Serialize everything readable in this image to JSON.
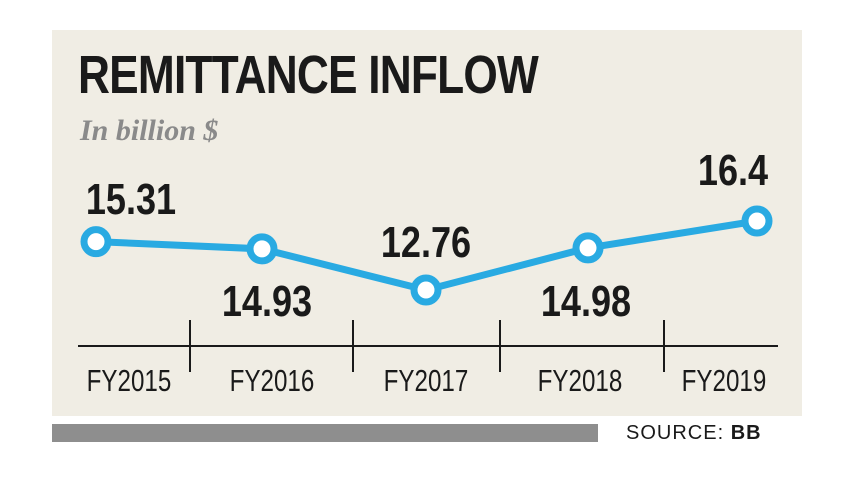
{
  "chart_data": {
    "type": "line",
    "title": "REMITTANCE INFLOW",
    "subtitle": "In billion $",
    "categories": [
      "FY2015",
      "FY2016",
      "FY2017",
      "FY2018",
      "FY2019"
    ],
    "values": [
      15.31,
      14.93,
      12.76,
      14.98,
      16.4
    ],
    "data_labels": [
      "15.31",
      "14.93",
      "12.76",
      "14.98",
      "16.4"
    ],
    "colors": {
      "line": "#29aae2",
      "marker_fill": "#ffffff",
      "panel": "#f0ede4",
      "text": "#1a1a1a"
    }
  },
  "source": {
    "label": "SOURCE:",
    "name": "BB"
  }
}
